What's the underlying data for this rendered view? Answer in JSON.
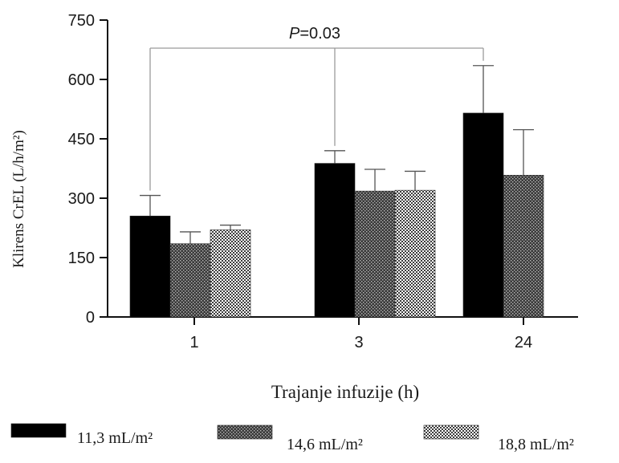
{
  "chart_data": {
    "type": "bar",
    "title": "",
    "xlabel": "Trajanje infuzije (h)",
    "ylabel": "Klirens CrEL  (L/h/m²)",
    "categories": [
      "1",
      "3",
      "24"
    ],
    "ylim": [
      0,
      750
    ],
    "yticks": [
      0,
      150,
      300,
      450,
      600,
      750
    ],
    "grid": false,
    "legend_position": "bottom",
    "series": [
      {
        "name": "11,3 mL/m²",
        "values": [
          255,
          388,
          515
        ],
        "errors": [
          52,
          32,
          120
        ],
        "pattern": "solid-black"
      },
      {
        "name": "14,6 mL/m²",
        "values": [
          185,
          318,
          358
        ],
        "errors": [
          30,
          55,
          115
        ],
        "pattern": "dense-crosshatch"
      },
      {
        "name": "18,8 mL/m²",
        "values": [
          220,
          320,
          null
        ],
        "errors": [
          12,
          48,
          null
        ],
        "pattern": "light-checker"
      }
    ],
    "annotations": [
      {
        "text": "P=0.03",
        "italic_part": "P",
        "rest": "=0.03",
        "connects_categories": [
          "1",
          "3",
          "24"
        ]
      }
    ]
  },
  "colors": {
    "ink": "#111111",
    "bracket": "#9a9a9a",
    "bar_solid": "#000000"
  }
}
